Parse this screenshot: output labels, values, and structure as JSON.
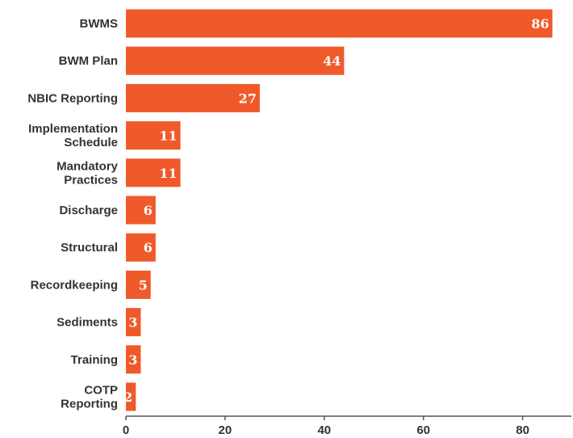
{
  "chart_data": {
    "type": "bar",
    "orientation": "horizontal",
    "title": "",
    "xlabel": "",
    "ylabel": "",
    "categories": [
      [
        "BWMS"
      ],
      [
        "BWM Plan"
      ],
      [
        "NBIC Reporting"
      ],
      [
        "Implementation",
        "Schedule"
      ],
      [
        "Mandatory",
        "Practices"
      ],
      [
        "Discharge"
      ],
      [
        "Structural"
      ],
      [
        "Recordkeeping"
      ],
      [
        "Sediments"
      ],
      [
        "Training"
      ],
      [
        "COTP",
        "Reporting"
      ]
    ],
    "values": [
      86,
      44,
      27,
      11,
      11,
      6,
      6,
      5,
      3,
      3,
      2
    ],
    "data_labels": [
      "86",
      "44",
      "27",
      "11",
      "11",
      "6",
      "6",
      "5",
      "3",
      "3",
      "2"
    ],
    "xlim": [
      0,
      90
    ],
    "x_ticks": [
      0,
      20,
      40,
      60,
      80
    ],
    "x_tick_labels": [
      "0",
      "20",
      "40",
      "60",
      "80"
    ],
    "grid": false,
    "bar_color": "#f05a2a",
    "axis_color": "#555555"
  }
}
